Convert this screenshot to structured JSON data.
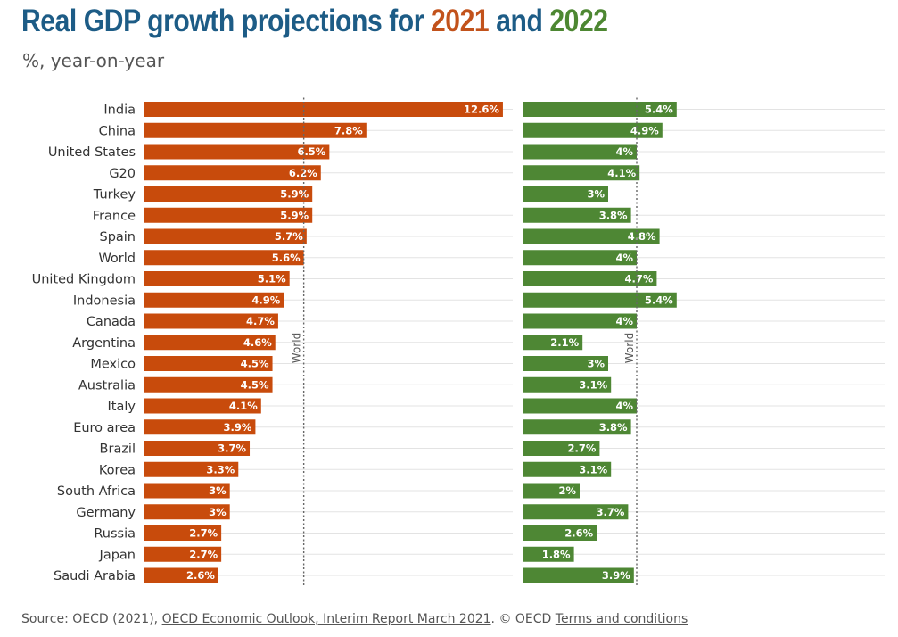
{
  "title": {
    "prefix": "Real GDP growth projections for",
    "year_a": "2021",
    "joiner": "and",
    "year_b": "2022"
  },
  "subtitle": "%, year-on-year",
  "source": {
    "prefix": "Source: OECD (2021),",
    "link1": "OECD Economic Outlook, Interim Report March 2021",
    "middle": ". © OECD",
    "link2": "Terms and conditions"
  },
  "colors": {
    "title": "#1d5c86",
    "year_2021": "#c2521b",
    "year_2022": "#4d8732",
    "bar_2021": "#c84b0c",
    "bar_2022": "#4e8734",
    "gridline": "#e3e3e3"
  },
  "chart_data": {
    "type": "bar",
    "orientation": "horizontal",
    "categories": [
      "India",
      "China",
      "United States",
      "G20",
      "Turkey",
      "France",
      "Spain",
      "World",
      "United Kingdom",
      "Indonesia",
      "Canada",
      "Argentina",
      "Mexico",
      "Australia",
      "Italy",
      "Euro area",
      "Brazil",
      "Korea",
      "South Africa",
      "Germany",
      "Russia",
      "Japan",
      "Saudi Arabia"
    ],
    "series": [
      {
        "name": "2021",
        "values": [
          12.6,
          7.8,
          6.5,
          6.2,
          5.9,
          5.9,
          5.7,
          5.6,
          5.1,
          4.9,
          4.7,
          4.6,
          4.5,
          4.5,
          4.1,
          3.9,
          3.7,
          3.3,
          3,
          3,
          2.7,
          2.7,
          2.6
        ],
        "labels": [
          "12.6%",
          "7.8%",
          "6.5%",
          "6.2%",
          "5.9%",
          "5.9%",
          "5.7%",
          "5.6%",
          "5.1%",
          "4.9%",
          "4.7%",
          "4.6%",
          "4.5%",
          "4.5%",
          "4.1%",
          "3.9%",
          "3.7%",
          "3.3%",
          "3%",
          "3%",
          "2.7%",
          "2.7%",
          "2.6%"
        ],
        "reference": {
          "label": "World",
          "value": 5.6
        }
      },
      {
        "name": "2022",
        "values": [
          5.4,
          4.9,
          4,
          4.1,
          3,
          3.8,
          4.8,
          4,
          4.7,
          5.4,
          4,
          2.1,
          3,
          3.1,
          4,
          3.8,
          2.7,
          3.1,
          2,
          3.7,
          2.6,
          1.8,
          3.9
        ],
        "labels": [
          "5.4%",
          "4.9%",
          "4%",
          "4.1%",
          "3%",
          "3.8%",
          "4.8%",
          "4%",
          "4.7%",
          "5.4%",
          "4%",
          "2.1%",
          "3%",
          "3.1%",
          "4%",
          "3.8%",
          "2.7%",
          "3.1%",
          "2%",
          "3.7%",
          "2.6%",
          "1.8%",
          "3.9%"
        ],
        "reference": {
          "label": "World",
          "value": 4
        }
      }
    ],
    "legend": "none",
    "grid": true
  }
}
